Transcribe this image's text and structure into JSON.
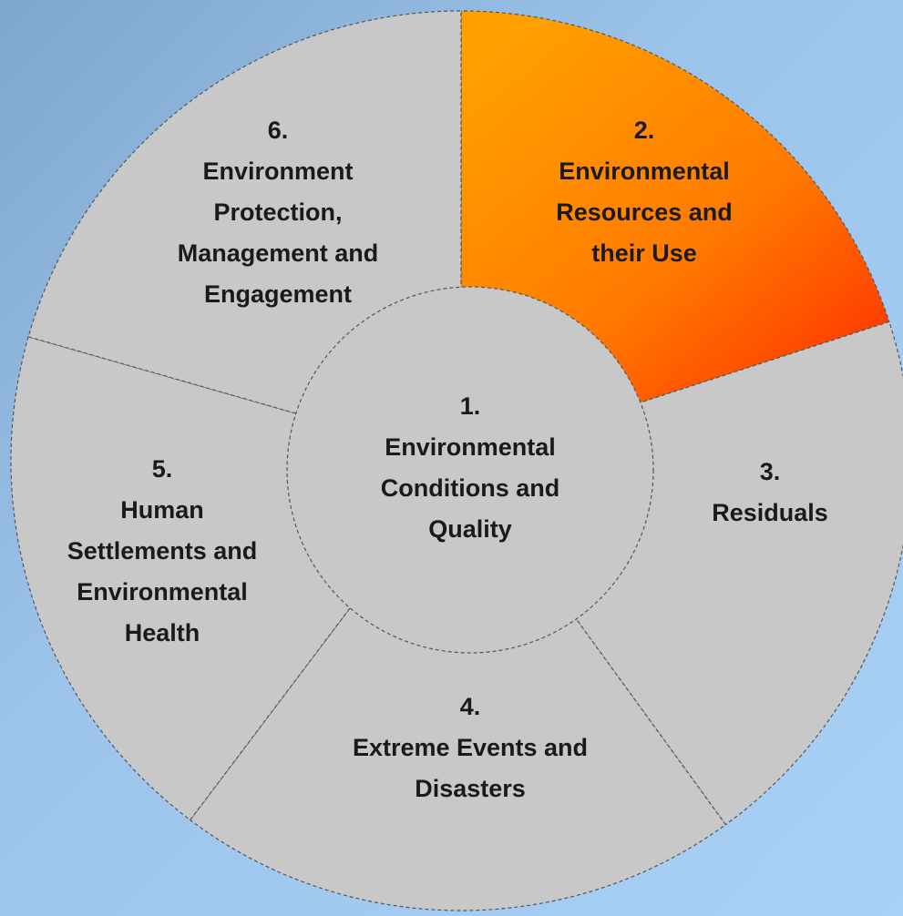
{
  "segments": [
    {
      "number": "1.",
      "lines": [
        "Environmental",
        "Conditions and",
        "Quality"
      ]
    },
    {
      "number": "2.",
      "lines": [
        "Environmental",
        "Resources and",
        "their Use"
      ]
    },
    {
      "number": "3.",
      "lines": [
        "Residuals"
      ]
    },
    {
      "number": "4.",
      "lines": [
        "Extreme Events and",
        "Disasters"
      ]
    },
    {
      "number": "5.",
      "lines": [
        "Human",
        "Settlements and",
        "Environmental",
        "Health"
      ]
    },
    {
      "number": "6.",
      "lines": [
        "Environment",
        "Protection,",
        "Management and",
        "Engagement"
      ]
    }
  ]
}
